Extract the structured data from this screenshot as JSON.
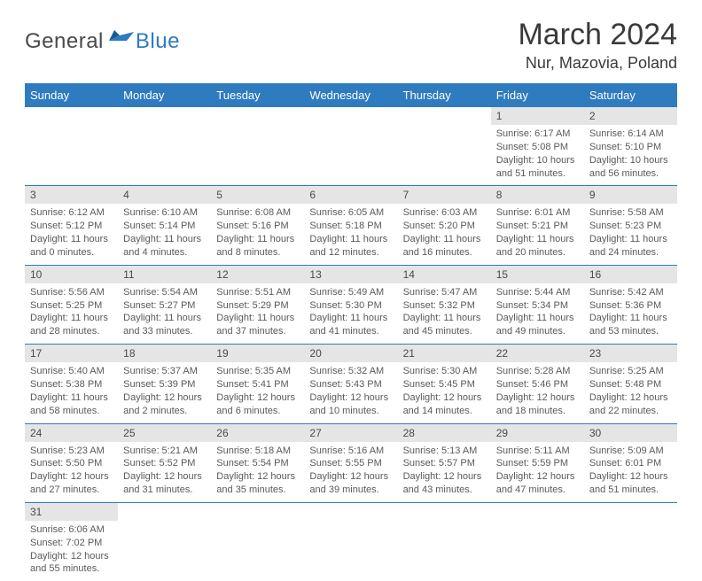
{
  "logo": {
    "general": "General",
    "blue": "Blue"
  },
  "header": {
    "title": "March 2024",
    "location": "Nur, Mazovia, Poland"
  },
  "colors": {
    "header_bg": "#2f7bbf",
    "header_fg": "#ffffff",
    "daynum_bg": "#e5e5e5",
    "row_divider": "#2f7bbf",
    "text": "#5a5a5a"
  },
  "daysOfWeek": [
    "Sunday",
    "Monday",
    "Tuesday",
    "Wednesday",
    "Thursday",
    "Friday",
    "Saturday"
  ],
  "weeks": [
    [
      null,
      null,
      null,
      null,
      null,
      {
        "n": "1",
        "sr": "6:17 AM",
        "ss": "5:08 PM",
        "dl": "10 hours and 51 minutes."
      },
      {
        "n": "2",
        "sr": "6:14 AM",
        "ss": "5:10 PM",
        "dl": "10 hours and 56 minutes."
      }
    ],
    [
      {
        "n": "3",
        "sr": "6:12 AM",
        "ss": "5:12 PM",
        "dl": "11 hours and 0 minutes."
      },
      {
        "n": "4",
        "sr": "6:10 AM",
        "ss": "5:14 PM",
        "dl": "11 hours and 4 minutes."
      },
      {
        "n": "5",
        "sr": "6:08 AM",
        "ss": "5:16 PM",
        "dl": "11 hours and 8 minutes."
      },
      {
        "n": "6",
        "sr": "6:05 AM",
        "ss": "5:18 PM",
        "dl": "11 hours and 12 minutes."
      },
      {
        "n": "7",
        "sr": "6:03 AM",
        "ss": "5:20 PM",
        "dl": "11 hours and 16 minutes."
      },
      {
        "n": "8",
        "sr": "6:01 AM",
        "ss": "5:21 PM",
        "dl": "11 hours and 20 minutes."
      },
      {
        "n": "9",
        "sr": "5:58 AM",
        "ss": "5:23 PM",
        "dl": "11 hours and 24 minutes."
      }
    ],
    [
      {
        "n": "10",
        "sr": "5:56 AM",
        "ss": "5:25 PM",
        "dl": "11 hours and 28 minutes."
      },
      {
        "n": "11",
        "sr": "5:54 AM",
        "ss": "5:27 PM",
        "dl": "11 hours and 33 minutes."
      },
      {
        "n": "12",
        "sr": "5:51 AM",
        "ss": "5:29 PM",
        "dl": "11 hours and 37 minutes."
      },
      {
        "n": "13",
        "sr": "5:49 AM",
        "ss": "5:30 PM",
        "dl": "11 hours and 41 minutes."
      },
      {
        "n": "14",
        "sr": "5:47 AM",
        "ss": "5:32 PM",
        "dl": "11 hours and 45 minutes."
      },
      {
        "n": "15",
        "sr": "5:44 AM",
        "ss": "5:34 PM",
        "dl": "11 hours and 49 minutes."
      },
      {
        "n": "16",
        "sr": "5:42 AM",
        "ss": "5:36 PM",
        "dl": "11 hours and 53 minutes."
      }
    ],
    [
      {
        "n": "17",
        "sr": "5:40 AM",
        "ss": "5:38 PM",
        "dl": "11 hours and 58 minutes."
      },
      {
        "n": "18",
        "sr": "5:37 AM",
        "ss": "5:39 PM",
        "dl": "12 hours and 2 minutes."
      },
      {
        "n": "19",
        "sr": "5:35 AM",
        "ss": "5:41 PM",
        "dl": "12 hours and 6 minutes."
      },
      {
        "n": "20",
        "sr": "5:32 AM",
        "ss": "5:43 PM",
        "dl": "12 hours and 10 minutes."
      },
      {
        "n": "21",
        "sr": "5:30 AM",
        "ss": "5:45 PM",
        "dl": "12 hours and 14 minutes."
      },
      {
        "n": "22",
        "sr": "5:28 AM",
        "ss": "5:46 PM",
        "dl": "12 hours and 18 minutes."
      },
      {
        "n": "23",
        "sr": "5:25 AM",
        "ss": "5:48 PM",
        "dl": "12 hours and 22 minutes."
      }
    ],
    [
      {
        "n": "24",
        "sr": "5:23 AM",
        "ss": "5:50 PM",
        "dl": "12 hours and 27 minutes."
      },
      {
        "n": "25",
        "sr": "5:21 AM",
        "ss": "5:52 PM",
        "dl": "12 hours and 31 minutes."
      },
      {
        "n": "26",
        "sr": "5:18 AM",
        "ss": "5:54 PM",
        "dl": "12 hours and 35 minutes."
      },
      {
        "n": "27",
        "sr": "5:16 AM",
        "ss": "5:55 PM",
        "dl": "12 hours and 39 minutes."
      },
      {
        "n": "28",
        "sr": "5:13 AM",
        "ss": "5:57 PM",
        "dl": "12 hours and 43 minutes."
      },
      {
        "n": "29",
        "sr": "5:11 AM",
        "ss": "5:59 PM",
        "dl": "12 hours and 47 minutes."
      },
      {
        "n": "30",
        "sr": "5:09 AM",
        "ss": "6:01 PM",
        "dl": "12 hours and 51 minutes."
      }
    ],
    [
      {
        "n": "31",
        "sr": "6:06 AM",
        "ss": "7:02 PM",
        "dl": "12 hours and 55 minutes."
      },
      null,
      null,
      null,
      null,
      null,
      null
    ]
  ],
  "labels": {
    "sunrise": "Sunrise:",
    "sunset": "Sunset:",
    "daylight": "Daylight:"
  }
}
